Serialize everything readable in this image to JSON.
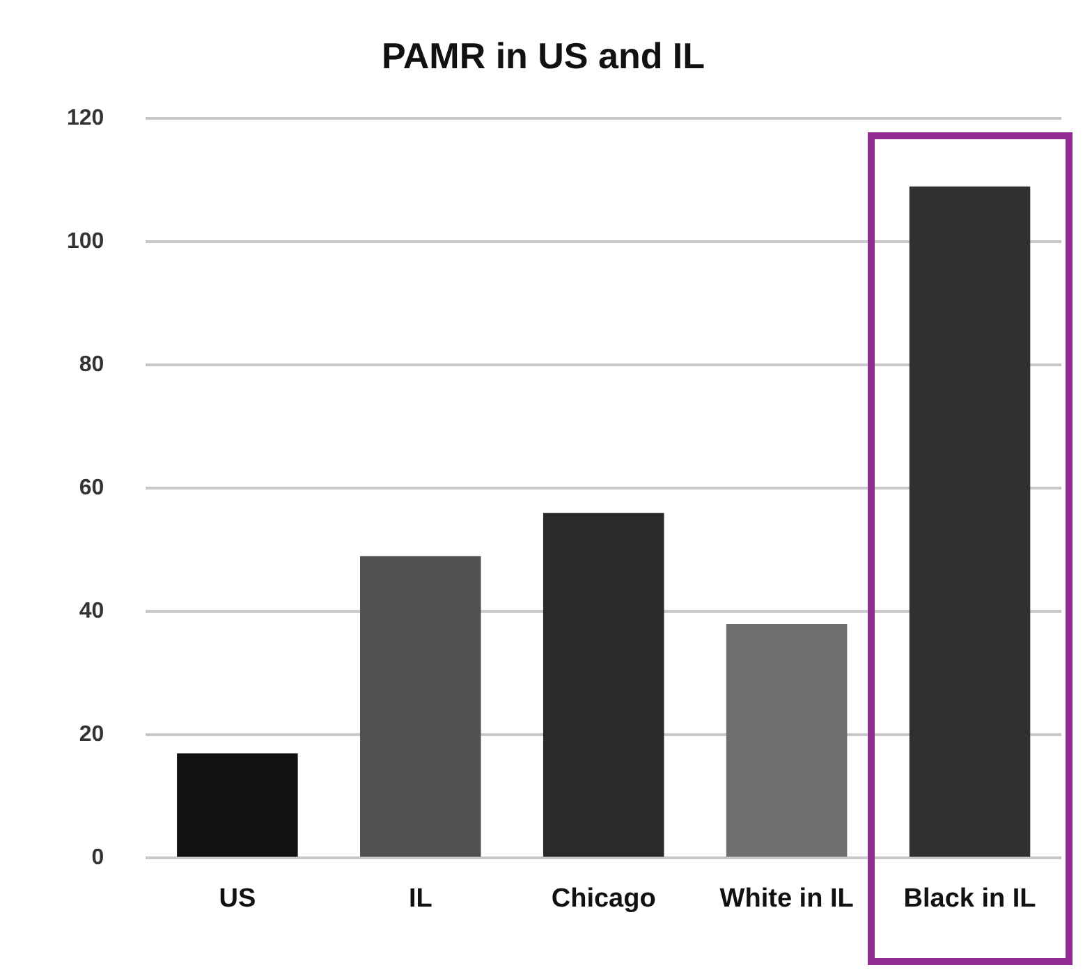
{
  "chart_data": {
    "type": "bar",
    "title": "PAMR in US and IL",
    "categories": [
      "US",
      "IL",
      "Chicago",
      "White in IL",
      "Black in IL"
    ],
    "values": [
      17,
      49,
      56,
      38,
      109
    ],
    "colors": [
      "#111111",
      "#505050",
      "#2a2a2a",
      "#6e6e6e",
      "#303030"
    ],
    "ylim": [
      0,
      120
    ],
    "yticks": [
      0,
      20,
      40,
      60,
      80,
      100,
      120
    ],
    "grid": "y",
    "legend": false
  }
}
